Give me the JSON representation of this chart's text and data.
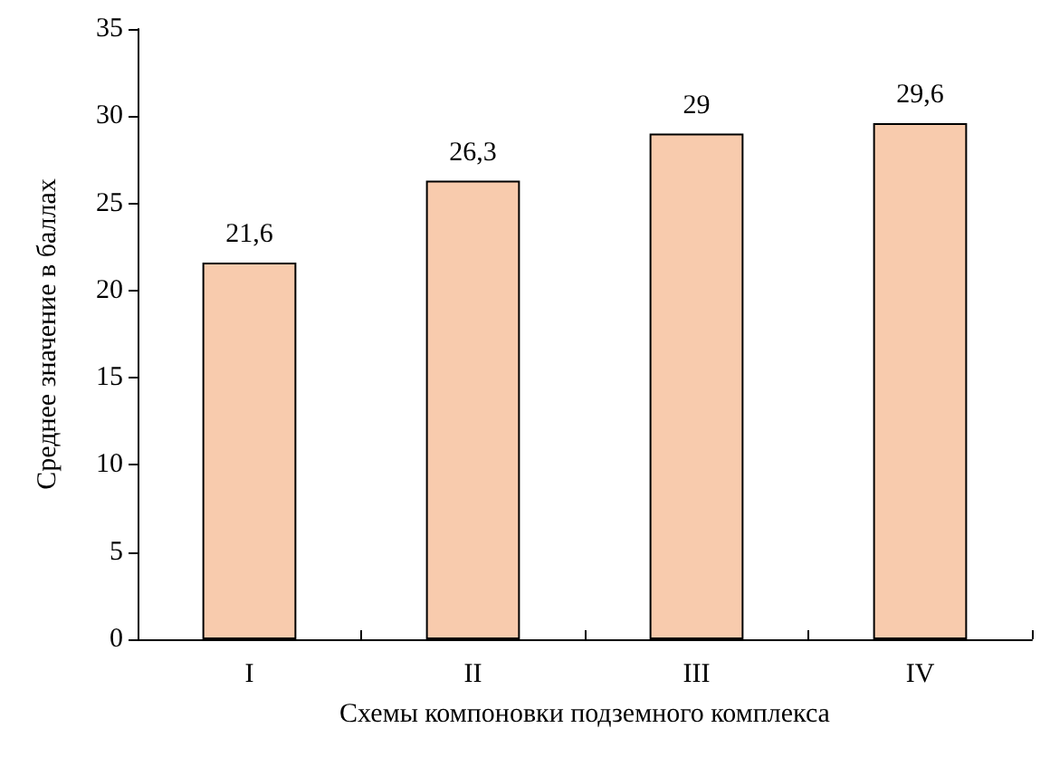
{
  "chart_data": {
    "type": "bar",
    "xlabel": "Схемы компоновки подземного комплекса",
    "ylabel": "Среднее значение в баллах",
    "categories": [
      "I",
      "II",
      "III",
      "IV"
    ],
    "values": [
      21.6,
      26.3,
      29,
      29.6
    ],
    "value_labels": [
      "21,6",
      "26,3",
      "29",
      "29,6"
    ],
    "color": "#f8cbad",
    "ylim": [
      0,
      35
    ],
    "yticks": [
      0,
      5,
      10,
      15,
      20,
      25,
      30,
      35
    ],
    "grid": false
  }
}
